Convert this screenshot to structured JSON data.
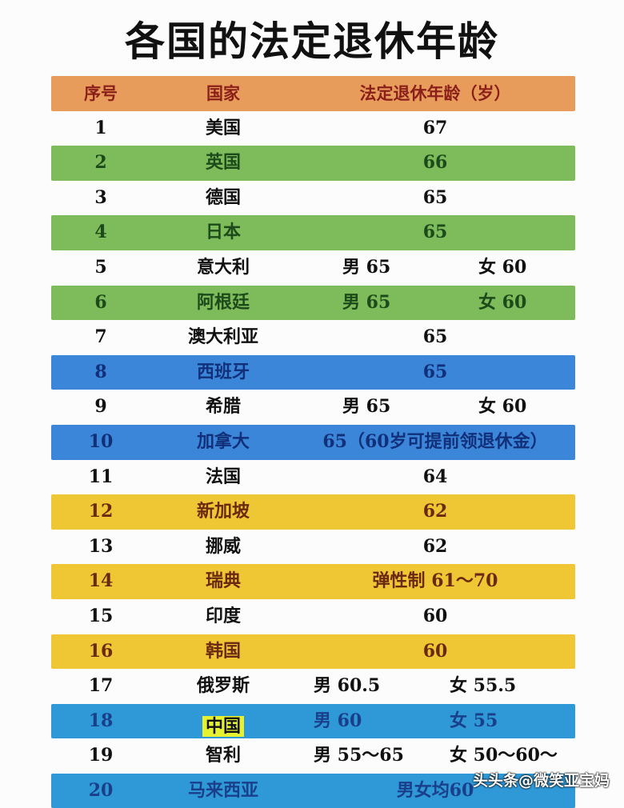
{
  "title": "各国的法定退休年龄",
  "colors": {
    "header": "#e79c5c",
    "green": "#7dbb5b",
    "blue": "#3b86d9",
    "yellow": "#efc735",
    "cyan": "#2f98d6",
    "white": "#fbfcfb"
  },
  "header": {
    "num": "序号",
    "country": "国家",
    "age": "法定退休年龄（岁）"
  },
  "rows": [
    {
      "num": "1",
      "country": "美国",
      "age": "67",
      "band": "white"
    },
    {
      "num": "2",
      "country": "英国",
      "age": "66",
      "band": "green"
    },
    {
      "num": "3",
      "country": "德国",
      "age": "65",
      "band": "white"
    },
    {
      "num": "4",
      "country": "日本",
      "age": "65",
      "band": "green"
    },
    {
      "num": "5",
      "country": "意大利",
      "male": "男  65",
      "female": "女  60",
      "band": "white"
    },
    {
      "num": "6",
      "country": "阿根廷",
      "male": "男  65",
      "female": "女  60",
      "band": "green"
    },
    {
      "num": "7",
      "country": "澳大利亚",
      "age": "65",
      "band": "white"
    },
    {
      "num": "8",
      "country": "西班牙",
      "age": "65",
      "band": "blue"
    },
    {
      "num": "9",
      "country": "希腊",
      "male": "男  65",
      "female": "女  60",
      "band": "white"
    },
    {
      "num": "10",
      "country": "加拿大",
      "age": "65（60岁可提前领退休金）",
      "band": "blue"
    },
    {
      "num": "11",
      "country": "法国",
      "age": "64",
      "band": "white"
    },
    {
      "num": "12",
      "country": "新加坡",
      "age": "62",
      "band": "yellow"
    },
    {
      "num": "13",
      "country": "挪威",
      "age": "62",
      "band": "white"
    },
    {
      "num": "14",
      "country": "瑞典",
      "age": "弹性制 61～70",
      "band": "yellow"
    },
    {
      "num": "15",
      "country": "印度",
      "age": "60",
      "band": "white"
    },
    {
      "num": "16",
      "country": "韩国",
      "age": "60",
      "band": "yellow"
    },
    {
      "num": "17",
      "country": "俄罗斯",
      "male": "男  60.5",
      "female": "女  55.5",
      "band": "white",
      "wide": true
    },
    {
      "num": "18",
      "country": "中国",
      "male": "男  60",
      "female": "女  55",
      "band": "cyan",
      "wide": true,
      "highlight": true
    },
    {
      "num": "19",
      "country": "智利",
      "male": "男  55～65",
      "female": "女  50～60～",
      "band": "white",
      "wide": true
    },
    {
      "num": "20",
      "country": "马来西亚",
      "age": "男女均60",
      "band": "cyan"
    }
  ],
  "watermark": "头头条@微笑亚宝妈"
}
